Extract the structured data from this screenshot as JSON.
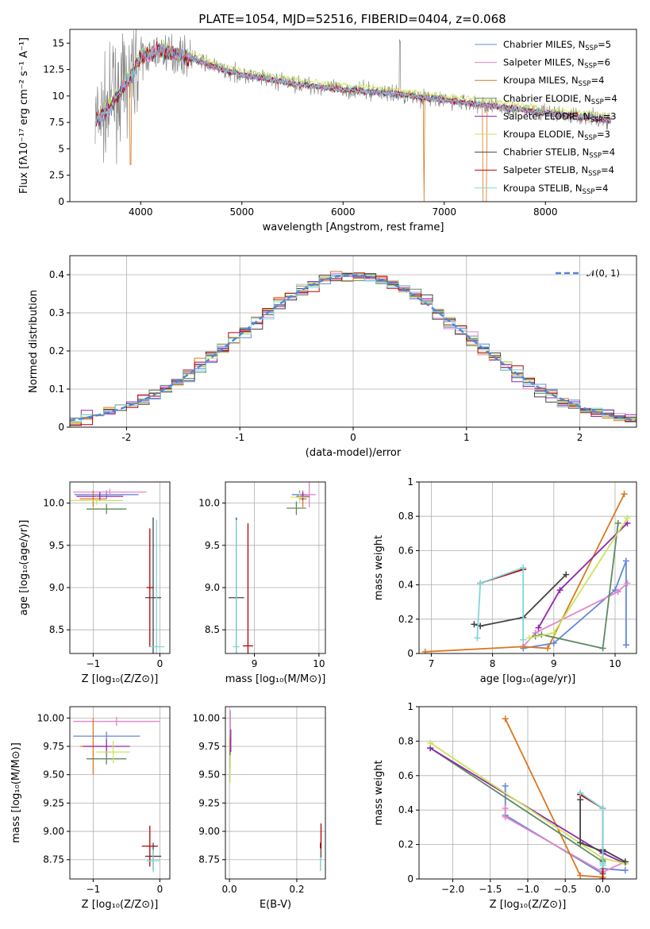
{
  "colors": [
    "#6488d8",
    "#e585c8",
    "#d9781e",
    "#5f8a5f",
    "#9424b0",
    "#c9e55a",
    "#444444",
    "#b80000",
    "#7fd7d7"
  ],
  "chart_data": [
    {
      "id": "spectrum",
      "type": "line",
      "title": "PLATE=1054, MJD=52516, FIBERID=0404, z=0.068",
      "xlabel": "wavelength [Angstrom, rest frame]",
      "ylabel": "Flux [fλ10⁻¹⁷ erg cm⁻² s⁻¹ A⁻¹]",
      "xlim": [
        3300,
        8900
      ],
      "ylim": [
        0,
        16.3
      ],
      "xticks": [
        4000,
        5000,
        6000,
        7000,
        8000
      ],
      "yticks": [
        0.0,
        2.5,
        5.0,
        7.5,
        10.0,
        12.5,
        15.0
      ],
      "continuum": [
        [
          3550,
          7.6
        ],
        [
          3700,
          9.0
        ],
        [
          3850,
          11.0
        ],
        [
          4000,
          13.6
        ],
        [
          4200,
          14.3
        ],
        [
          4500,
          13.6
        ],
        [
          4800,
          12.5
        ],
        [
          5000,
          12.0
        ],
        [
          5500,
          11.2
        ],
        [
          6000,
          10.6
        ],
        [
          6500,
          10.2
        ],
        [
          7000,
          9.6
        ],
        [
          7500,
          9.0
        ],
        [
          8000,
          8.4
        ],
        [
          8500,
          7.9
        ],
        [
          8650,
          7.7
        ]
      ],
      "legend": [
        "Chabrier MILES, N_SSP=5",
        "Salpeter MILES, N_SSP=6",
        "Kroupa MILES, N_SSP=4",
        "Chabrier ELODIE, N_SSP=4",
        "Salpeter ELODIE, N_SSP=3",
        "Kroupa ELODIE, N_SSP=3",
        "Chabrier STELIB, N_SSP=4",
        "Salpeter STELIB, N_SSP=4",
        "Kroupa STELIB, N_SSP=4"
      ]
    },
    {
      "id": "residuals",
      "type": "line",
      "xlabel": "(data-model)/error",
      "ylabel": "Normed distribution",
      "xlim": [
        -2.5,
        2.5
      ],
      "ylim": [
        0,
        0.45
      ],
      "xticks": [
        -2,
        -1,
        0,
        1,
        2
      ],
      "yticks": [
        0.0,
        0.1,
        0.2,
        0.3,
        0.4
      ],
      "legend": [
        "𝒩(0, 1)"
      ]
    },
    {
      "id": "age_vs_Z",
      "type": "scatter",
      "xlabel": "Z [log₁₀(Z/Z⊙)]",
      "ylabel": "age  [log₁₀(age/yr)]",
      "xlim": [
        -1.35,
        0.15
      ],
      "ylim": [
        8.22,
        10.25
      ],
      "xticks": [
        -1,
        0
      ],
      "xticklabels": [
        "−1",
        "0"
      ],
      "yticks": [
        8.5,
        9.0,
        9.5,
        10.0
      ],
      "yticklabels": [
        "8.5",
        "9.0",
        "9.5",
        "10.0"
      ],
      "points": [
        {
          "x": -0.8,
          "y": 10.1,
          "xerr": 0.48,
          "yerr": 0.05,
          "c": 0
        },
        {
          "x": -0.75,
          "y": 10.13,
          "xerr": 0.55,
          "yerr": 0.04,
          "c": 1
        },
        {
          "x": -1.0,
          "y": 10.05,
          "xerr": 0.2,
          "yerr": 0.1,
          "c": 2
        },
        {
          "x": -0.8,
          "y": 9.93,
          "xerr": 0.3,
          "yerr": 0.06,
          "c": 3
        },
        {
          "x": -0.9,
          "y": 10.08,
          "xerr": 0.35,
          "yerr": 0.05,
          "c": 4
        },
        {
          "x": -0.95,
          "y": 10.03,
          "xerr": 0.4,
          "yerr": 0.05,
          "c": 5
        },
        {
          "x": -0.1,
          "y": 8.88,
          "xerr": 0.12,
          "yerr": 0.95,
          "c": 6
        },
        {
          "x": -0.15,
          "y": 9.0,
          "xerr": 0.05,
          "yerr": 0.7,
          "c": 7
        },
        {
          "x": -0.05,
          "y": 8.3,
          "xerr": 0.12,
          "yerr": 1.5,
          "c": 8
        }
      ]
    },
    {
      "id": "age_vs_mass",
      "type": "scatter",
      "xlabel": "mass [log₁₀(M/M⊙)]",
      "ylabel": "",
      "xlim": [
        8.55,
        10.1
      ],
      "ylim": [
        8.22,
        10.25
      ],
      "xticks": [
        9,
        10
      ],
      "xticklabels": [
        "9",
        "10"
      ],
      "yticks": [
        8.5,
        9.0,
        9.5,
        10.0
      ],
      "yticklabels": [
        "8.5",
        "9.0",
        "9.5",
        "10.0"
      ],
      "points": [
        {
          "x": 9.7,
          "y": 10.1,
          "xerr": 0.12,
          "yerr": 0.05,
          "c": 0
        },
        {
          "x": 9.85,
          "y": 10.1,
          "xerr": 0.1,
          "yerr": 0.15,
          "c": 1
        },
        {
          "x": 9.75,
          "y": 10.05,
          "xerr": 0.06,
          "yerr": 0.1,
          "c": 2
        },
        {
          "x": 9.65,
          "y": 9.94,
          "xerr": 0.15,
          "yerr": 0.08,
          "c": 3
        },
        {
          "x": 9.75,
          "y": 10.08,
          "xerr": 0.1,
          "yerr": 0.05,
          "c": 4
        },
        {
          "x": 9.7,
          "y": 10.07,
          "xerr": 0.14,
          "yerr": 0.06,
          "c": 5
        },
        {
          "x": 8.72,
          "y": 8.88,
          "xerr": 0.12,
          "yerr": 0.95,
          "c": 6
        },
        {
          "x": 8.9,
          "y": 8.31,
          "xerr": 0.08,
          "yerr": 1.45,
          "c": 7
        },
        {
          "x": 8.72,
          "y": 8.3,
          "xerr": 0.05,
          "yerr": 1.5,
          "c": 8
        }
      ]
    },
    {
      "id": "weight_vs_age",
      "type": "line",
      "xlabel": "age  [log₁₀(age/yr)]",
      "ylabel": "mass weight",
      "xlim": [
        6.8,
        10.35
      ],
      "ylim": [
        0,
        1.0
      ],
      "xticks": [
        7,
        8,
        9,
        10
      ],
      "xticklabels": [
        "7",
        "8",
        "9",
        "10"
      ],
      "yticks": [
        0.0,
        0.2,
        0.4,
        0.6,
        0.8,
        1.0
      ],
      "series": [
        {
          "c": 0,
          "x": [
            8.5,
            9.0,
            10.0,
            10.18,
            10.18
          ],
          "y": [
            0.03,
            0.06,
            0.37,
            0.54,
            0.05
          ]
        },
        {
          "c": 1,
          "x": [
            8.5,
            8.7,
            10.05,
            10.2
          ],
          "y": [
            0.04,
            0.12,
            0.36,
            0.41
          ]
        },
        {
          "c": 2,
          "x": [
            6.9,
            8.5,
            8.9,
            10.15
          ],
          "y": [
            0.01,
            0.04,
            0.03,
            0.93
          ]
        },
        {
          "c": 3,
          "x": [
            8.7,
            8.8,
            9.8,
            10.05
          ],
          "y": [
            0.1,
            0.11,
            0.03,
            0.76
          ]
        },
        {
          "c": 4,
          "x": [
            8.75,
            9.1,
            10.2
          ],
          "y": [
            0.15,
            0.37,
            0.76
          ]
        },
        {
          "c": 5,
          "x": [
            8.6,
            9.0,
            10.2
          ],
          "y": [
            0.09,
            0.12,
            0.79
          ]
        },
        {
          "c": 6,
          "x": [
            7.7,
            7.8,
            8.5,
            9.2
          ],
          "y": [
            0.17,
            0.16,
            0.21,
            0.46
          ]
        },
        {
          "c": 7,
          "x": [
            7.8,
            8.5
          ],
          "y": [
            0.41,
            0.49
          ]
        },
        {
          "c": 8,
          "x": [
            7.75,
            7.8,
            8.5,
            8.5
          ],
          "y": [
            0.09,
            0.41,
            0.5,
            0.08
          ]
        }
      ]
    },
    {
      "id": "mass_vs_Z",
      "type": "scatter",
      "xlabel": "Z [log₁₀(Z/Z⊙)]",
      "ylabel": "mass [log₁₀(M/M⊙)]",
      "xlim": [
        -1.35,
        0.15
      ],
      "ylim": [
        8.58,
        10.1
      ],
      "xticks": [
        -1,
        0
      ],
      "xticklabels": [
        "−1",
        "0"
      ],
      "yticks": [
        8.75,
        9.0,
        9.25,
        9.5,
        9.75,
        10.0
      ],
      "yticklabels": [
        "8.75",
        "9.00",
        "9.25",
        "9.50",
        "9.75",
        "10.00"
      ],
      "points": [
        {
          "x": -0.8,
          "y": 9.84,
          "xerr": 0.5,
          "yerr": 0.04,
          "c": 0
        },
        {
          "x": -0.65,
          "y": 9.97,
          "xerr": 0.65,
          "yerr": 0.04,
          "c": 1
        },
        {
          "x": -1.0,
          "y": 9.75,
          "xerr": 0.2,
          "yerr": 0.25,
          "c": 2
        },
        {
          "x": -0.8,
          "y": 9.64,
          "xerr": 0.3,
          "yerr": 0.05,
          "c": 3
        },
        {
          "x": -0.8,
          "y": 9.75,
          "xerr": 0.35,
          "yerr": 0.06,
          "c": 4
        },
        {
          "x": -0.7,
          "y": 9.7,
          "xerr": 0.25,
          "yerr": 0.1,
          "c": 5
        },
        {
          "x": -0.1,
          "y": 8.78,
          "xerr": 0.12,
          "yerr": 0.12,
          "c": 6
        },
        {
          "x": -0.15,
          "y": 8.87,
          "xerr": 0.12,
          "yerr": 0.18,
          "c": 7
        },
        {
          "x": -0.1,
          "y": 8.74,
          "xerr": 0.1,
          "yerr": 0.1,
          "c": 8
        }
      ]
    },
    {
      "id": "mass_vs_ebv",
      "type": "scatter",
      "xlabel": "E(B-V)",
      "ylabel": "",
      "xlim": [
        -0.012,
        0.285
      ],
      "ylim": [
        8.58,
        10.1
      ],
      "xticks": [
        0.0,
        0.2
      ],
      "xticklabels": [
        "0.0",
        "0.2"
      ],
      "yticks": [
        8.75,
        9.0,
        9.25,
        9.5,
        9.75,
        10.0
      ],
      "yticklabels": [
        "8.75",
        "9.00",
        "9.25",
        "9.50",
        "9.75",
        "10.00"
      ],
      "points": [
        {
          "x": 0.003,
          "y": 9.84,
          "xerr": 0.001,
          "yerr": 0.05,
          "c": 0
        },
        {
          "x": 0.003,
          "y": 9.97,
          "xerr": 0.001,
          "yerr": 0.1,
          "c": 1
        },
        {
          "x": 0.002,
          "y": 9.75,
          "xerr": 0.001,
          "yerr": 0.08,
          "c": 2
        },
        {
          "x": 0.002,
          "y": 9.64,
          "xerr": 0.001,
          "yerr": 0.08,
          "c": 3
        },
        {
          "x": 0.004,
          "y": 9.8,
          "xerr": 0.001,
          "yerr": 0.1,
          "c": 4
        },
        {
          "x": 0.002,
          "y": 9.55,
          "xerr": 0.001,
          "yerr": 0.12,
          "c": 5
        },
        {
          "x": 0.27,
          "y": 8.78,
          "xerr": 0.001,
          "yerr": 0.12,
          "c": 6
        },
        {
          "x": 0.272,
          "y": 8.92,
          "xerr": 0.001,
          "yerr": 0.15,
          "c": 7
        },
        {
          "x": 0.27,
          "y": 8.75,
          "xerr": 0.001,
          "yerr": 0.1,
          "c": 8
        }
      ]
    },
    {
      "id": "weight_vs_Z",
      "type": "line",
      "xlabel": "Z [log₁₀(Z/Z⊙)]",
      "ylabel": "mass weight",
      "xlim": [
        -2.45,
        0.45
      ],
      "ylim": [
        0,
        1.0
      ],
      "xticks": [
        -2.0,
        -1.5,
        -1.0,
        -0.5,
        0.0
      ],
      "xticklabels": [
        "−2.0",
        "−1.5",
        "−1.0",
        "−0.5",
        "0.0"
      ],
      "yticks": [
        0.0,
        0.2,
        0.4,
        0.6,
        0.8,
        1.0
      ],
      "series": [
        {
          "c": 0,
          "x": [
            -1.3,
            -1.3,
            0.0,
            0.0,
            0.3
          ],
          "y": [
            0.54,
            0.37,
            0.03,
            0.06,
            0.05
          ]
        },
        {
          "c": 1,
          "x": [
            -1.3,
            -1.3,
            0.0,
            0.3
          ],
          "y": [
            0.41,
            0.36,
            0.04,
            0.1
          ]
        },
        {
          "c": 2,
          "x": [
            -1.3,
            -0.3,
            0.0
          ],
          "y": [
            0.93,
            0.02,
            0.01
          ]
        },
        {
          "c": 3,
          "x": [
            -2.3,
            0.0,
            0.0,
            0.0
          ],
          "y": [
            0.76,
            0.1,
            0.03,
            0.11
          ]
        },
        {
          "c": 4,
          "x": [
            -2.3,
            0.0,
            0.3
          ],
          "y": [
            0.76,
            0.15,
            0.09
          ]
        },
        {
          "c": 5,
          "x": [
            -2.3,
            0.0,
            0.3
          ],
          "y": [
            0.79,
            0.12,
            0.09
          ]
        },
        {
          "c": 6,
          "x": [
            -0.3,
            -0.3,
            0.0,
            0.0,
            0.3
          ],
          "y": [
            0.46,
            0.21,
            0.16,
            0.17,
            0.1
          ]
        },
        {
          "c": 7,
          "x": [
            -0.3,
            0.0,
            0.0
          ],
          "y": [
            0.49,
            0.41,
            0.0
          ]
        },
        {
          "c": 8,
          "x": [
            -0.3,
            0.0,
            0.0,
            0.0
          ],
          "y": [
            0.5,
            0.41,
            0.09,
            0.08
          ]
        }
      ]
    }
  ]
}
